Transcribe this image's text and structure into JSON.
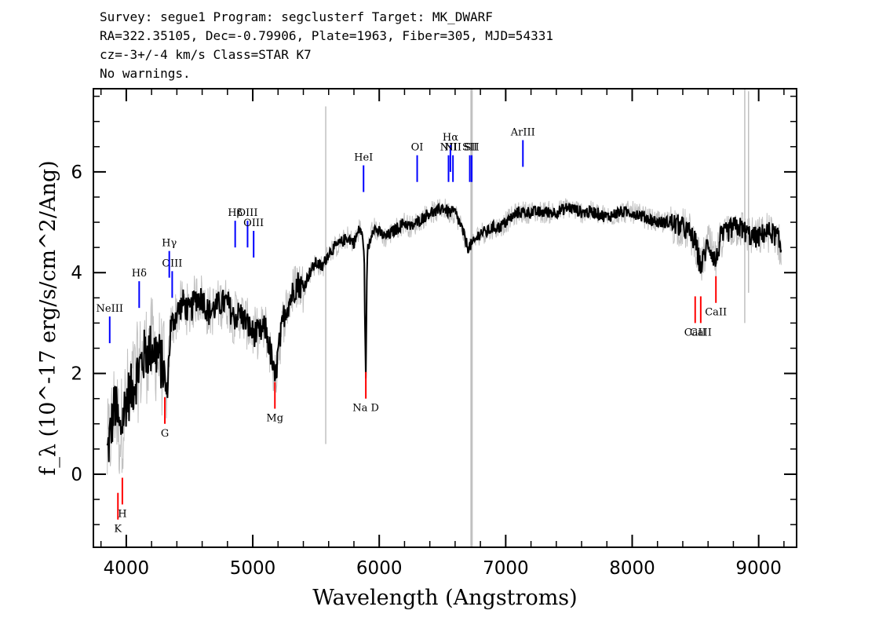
{
  "header": {
    "line1": "Survey: segue1 Program: segclusterf Target: MK_DWARF",
    "line2": "RA=322.35105, Dec=-0.79906, Plate=1963, Fiber=305, MJD=54331",
    "line3": "cz=-3+/-4 km/s Class=STAR K7",
    "line4": "No warnings."
  },
  "chart_data": {
    "type": "line",
    "title": "",
    "xlabel": "Wavelength (Angstroms)",
    "ylabel": "f_λ (10^-17 erg/s/cm^2/Ang)",
    "xlim": [
      3740,
      9300
    ],
    "ylim": [
      -1.45,
      7.65
    ],
    "xticks": [
      4000,
      5000,
      6000,
      7000,
      8000,
      9000
    ],
    "xtick_labels": [
      "4000",
      "5000",
      "6000",
      "7000",
      "8000",
      "9000"
    ],
    "yticks": [
      0,
      2,
      4,
      6
    ],
    "ytick_labels": [
      "0",
      "2",
      "4",
      "6"
    ],
    "grid": false,
    "colors": {
      "flux": "#000000",
      "error": "#c0c0c0",
      "emission": "#0000ff",
      "absorption": "#ff0000"
    },
    "series": [
      {
        "role": "flux",
        "x": [
          3850,
          3880,
          3910,
          3950,
          4000,
          4050,
          4100,
          4150,
          4200,
          4250,
          4300,
          4320,
          4350,
          4400,
          4450,
          4500,
          4550,
          4600,
          4650,
          4700,
          4750,
          4800,
          4850,
          4900,
          4950,
          5000,
          5050,
          5100,
          5150,
          5175,
          5200,
          5250,
          5300,
          5350,
          5400,
          5450,
          5500,
          5550,
          5600,
          5650,
          5700,
          5750,
          5800,
          5850,
          5880,
          5893,
          5905,
          5950,
          6000,
          6050,
          6100,
          6150,
          6200,
          6250,
          6300,
          6350,
          6400,
          6450,
          6500,
          6550,
          6600,
          6650,
          6700,
          6750,
          6800,
          6850,
          6900,
          6950,
          7000,
          7050,
          7100,
          7200,
          7300,
          7400,
          7500,
          7600,
          7700,
          7800,
          7900,
          8000,
          8100,
          8200,
          8300,
          8400,
          8450,
          8500,
          8542,
          8600,
          8662,
          8700,
          8750,
          8800,
          8850,
          8900,
          8950,
          9000,
          9050,
          9100,
          9150,
          9180
        ],
        "y": [
          0.4,
          0.9,
          1.4,
          0.8,
          1.5,
          1.7,
          2.1,
          2.4,
          2.5,
          2.4,
          2.0,
          1.5,
          2.9,
          3.2,
          3.4,
          3.2,
          3.5,
          3.5,
          3.2,
          3.3,
          3.4,
          3.4,
          3.1,
          3.2,
          3.0,
          2.8,
          2.8,
          2.9,
          2.3,
          1.8,
          2.4,
          3.2,
          3.5,
          3.8,
          3.7,
          4.0,
          4.2,
          4.1,
          4.4,
          4.5,
          4.6,
          4.7,
          4.6,
          4.9,
          4.5,
          1.8,
          4.4,
          4.9,
          4.8,
          4.7,
          4.8,
          4.9,
          5.0,
          4.9,
          5.0,
          5.1,
          5.2,
          5.2,
          5.3,
          5.2,
          5.2,
          4.9,
          4.5,
          4.6,
          4.8,
          4.8,
          4.9,
          4.9,
          5.0,
          5.1,
          5.2,
          5.2,
          5.2,
          5.2,
          5.3,
          5.2,
          5.2,
          5.1,
          5.2,
          5.2,
          5.1,
          5.0,
          5.0,
          4.9,
          4.8,
          4.6,
          4.1,
          4.6,
          4.2,
          4.7,
          4.8,
          4.9,
          4.9,
          4.8,
          4.7,
          4.7,
          4.8,
          4.8,
          4.7,
          4.4
        ]
      }
    ],
    "lines": [
      {
        "label": "NeIII",
        "x": 3869,
        "y": 2.6,
        "kind": "emission"
      },
      {
        "label": "Hδ",
        "x": 4102,
        "y": 3.3,
        "kind": "emission"
      },
      {
        "label": "OIII",
        "x": 4363,
        "y": 3.5,
        "kind": "emission"
      },
      {
        "label": "Hγ",
        "x": 4340,
        "y": 3.9,
        "kind": "emission"
      },
      {
        "label": "Hβ",
        "x": 4861,
        "y": 4.5,
        "kind": "emission"
      },
      {
        "label": "OIII",
        "x": 4959,
        "y": 4.5,
        "kind": "emission"
      },
      {
        "label": "OIII",
        "x": 5007,
        "y": 4.3,
        "kind": "emission"
      },
      {
        "label": "HeI",
        "x": 5876,
        "y": 5.6,
        "kind": "emission"
      },
      {
        "label": "OI",
        "x": 6300,
        "y": 5.8,
        "kind": "emission"
      },
      {
        "label": "NII",
        "x": 6548,
        "y": 5.8,
        "kind": "emission"
      },
      {
        "label": "Hα",
        "x": 6563,
        "y": 6.0,
        "kind": "emission"
      },
      {
        "label": "NII",
        "x": 6583,
        "y": 5.8,
        "kind": "emission"
      },
      {
        "label": "SII",
        "x": 6716,
        "y": 5.8,
        "kind": "emission"
      },
      {
        "label": "SII",
        "x": 6731,
        "y": 5.8,
        "kind": "emission"
      },
      {
        "label": "ArIII",
        "x": 7136,
        "y": 6.1,
        "kind": "emission"
      },
      {
        "label": "K",
        "x": 3934,
        "y": -0.9,
        "kind": "absorption"
      },
      {
        "label": "H",
        "x": 3969,
        "y": -0.6,
        "kind": "absorption"
      },
      {
        "label": "G",
        "x": 4305,
        "y": 1.0,
        "kind": "absorption"
      },
      {
        "label": "Mg",
        "x": 5175,
        "y": 1.3,
        "kind": "absorption"
      },
      {
        "label": "Na D",
        "x": 5894,
        "y": 1.5,
        "kind": "absorption"
      },
      {
        "label": "CaII",
        "x": 8498,
        "y": 3.0,
        "kind": "absorption"
      },
      {
        "label": "CaII",
        "x": 8542,
        "y": 3.0,
        "kind": "absorption"
      },
      {
        "label": "CaII",
        "x": 8662,
        "y": 3.4,
        "kind": "absorption"
      }
    ]
  }
}
